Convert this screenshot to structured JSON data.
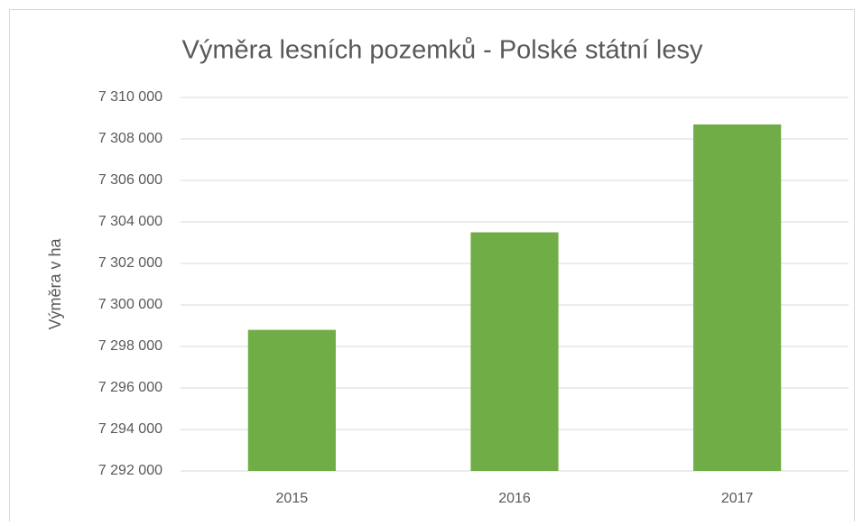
{
  "chart_data": {
    "type": "bar",
    "title": "Výměra lesních pozemků - Polské státní lesy",
    "y_label": "Výměra v ha",
    "categories": [
      "2015",
      "2016",
      "2017"
    ],
    "values": [
      7298800,
      7303500,
      7308700
    ],
    "color": "#70ad47",
    "ylim": [
      7292000,
      7310000
    ],
    "yticks": [
      {
        "value": 7292000,
        "label": "7 292 000"
      },
      {
        "value": 7294000,
        "label": "7 294 000"
      },
      {
        "value": 7296000,
        "label": "7 296 000"
      },
      {
        "value": 7298000,
        "label": "7 298 000"
      },
      {
        "value": 7300000,
        "label": "7 300 000"
      },
      {
        "value": 7302000,
        "label": "7 302 000"
      },
      {
        "value": 7304000,
        "label": "7 304 000"
      },
      {
        "value": 7306000,
        "label": "7 306 000"
      },
      {
        "value": 7308000,
        "label": "7 308 000"
      },
      {
        "value": 7310000,
        "label": "7 310 000"
      }
    ],
    "grid": true
  }
}
